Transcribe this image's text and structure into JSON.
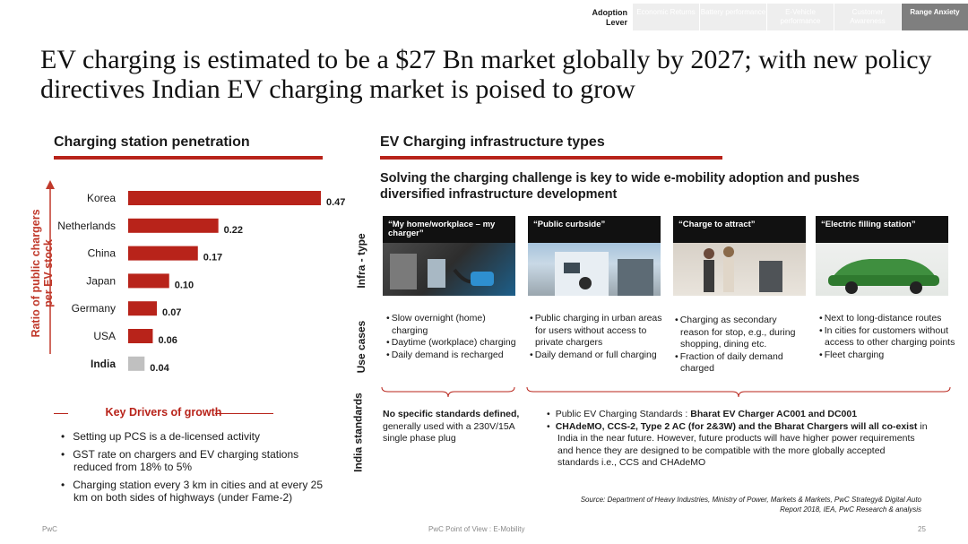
{
  "nav": {
    "lever_label": "Adoption Lever",
    "tabs": [
      "Economic Returns",
      "Battery performance",
      "E-Vehicle performance",
      "Customer Awareness",
      "Range Anxiety"
    ],
    "active_tab": "Range Anxiety"
  },
  "title": "EV charging is estimated to be a $27 Bn market globally by 2027; with new policy directives Indian EV charging market is poised to grow",
  "left": {
    "heading": "Charging station penetration",
    "key_drivers": {
      "heading": "Key Drivers of growth",
      "items": [
        "Setting up PCS is a de-licensed activity",
        "GST rate on chargers and EV charging stations reduced from 18% to 5%",
        "Charging station every 3 km in cities and at every 25 km on both sides of highways (under Fame-2)"
      ]
    }
  },
  "chart_data": {
    "type": "bar",
    "orientation": "horizontal",
    "categories": [
      "Korea",
      "Netherlands",
      "China",
      "Japan",
      "Germany",
      "USA",
      "India"
    ],
    "values": [
      0.47,
      0.22,
      0.17,
      0.1,
      0.07,
      0.06,
      0.04
    ],
    "value_labels": [
      "0.47",
      "0.22",
      "0.17",
      "0.10",
      "0.07",
      "0.06",
      "0.04"
    ],
    "ylabel": "Ratio of public chargers per EV stock",
    "highlight": "India",
    "colors": {
      "bar": "#b8231a",
      "highlight": "#c0c0c0",
      "axis_arrow": "#c0392b"
    }
  },
  "right": {
    "heading": "EV Charging infrastructure types",
    "subtitle": "Solving the charging challenge is key to wide e-mobility adoption and pushes diversified infrastructure development",
    "row_labels": {
      "infra": "Infra - type",
      "use": "Use cases",
      "standards": "India standards"
    },
    "types": [
      {
        "caption": "“My home/workplace – my charger”",
        "icon": "home-charger-photo"
      },
      {
        "caption": "“Public curbside”",
        "icon": "curbside-charger-photo"
      },
      {
        "caption": "“Charge to attract”",
        "icon": "mall-shoppers-photo"
      },
      {
        "caption": "“Electric filling station”",
        "icon": "electric-car-photo"
      }
    ],
    "use_cases": [
      [
        "Slow overnight (home) charging",
        "Daytime (workplace) charging",
        "Daily demand is recharged"
      ],
      [
        "Public charging in urban areas for users without access to private chargers",
        "Daily demand or full charging"
      ],
      [
        "Charging as secondary reason for stop, e.g., during shopping, dining etc.",
        "Fraction of daily demand charged"
      ],
      [
        "Next to long-distance routes",
        "In cities for customers without access to other charging points",
        "Fleet charging"
      ]
    ],
    "standards_left": {
      "bold": "No specific standards defined,",
      "rest": " generally used with a 230V/15A single phase plug"
    },
    "standards_right": [
      {
        "pre": "Public EV Charging Standards : ",
        "bold": "Bharat EV Charger AC001 and DC001",
        "post": ""
      },
      {
        "pre": "",
        "bold": "CHAdeMO, CCS-2, Type 2 AC (for 2&3W) and the Bharat Chargers will all co-exist",
        "post": " in India in the near future. However, future products will have higher power requirements and hence they are designed to be compatible with the more globally accepted standards i.e., CCS and CHAdeMO"
      }
    ]
  },
  "source": "Source: Department of Heavy Industries, Ministry of Power, Markets & Markets, PwC Strategy& Digital Auto Report 2018, IEA, PwC Research & analysis",
  "footer": {
    "left": "PwC",
    "center": "PwC Point of View : E-Mobility",
    "page": "25"
  }
}
